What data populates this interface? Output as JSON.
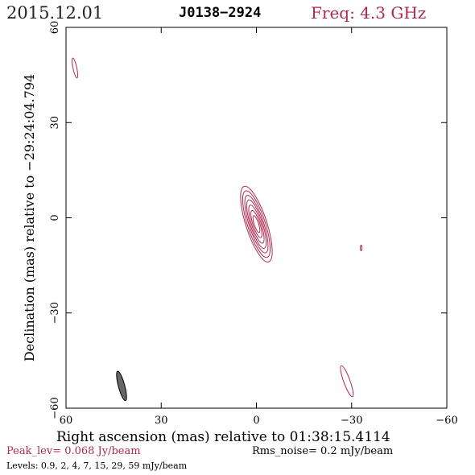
{
  "header": {
    "date": "2015.12.01",
    "source": "J0138−2924",
    "freq_label": "Freq: 4.3 GHz"
  },
  "footer": {
    "peak": "Peak_lev=  0.068 Jy/beam",
    "rms": "Rms_noise=   0.2 mJy/beam",
    "levels": "Levels: 0.9,   2,   4,   7,   15,   29,   59 mJy/beam"
  },
  "colors": {
    "accent": "#b0284e",
    "contour": "#b0284e",
    "beam_fill": "#666666"
  },
  "chart_data": {
    "type": "contour",
    "xlabel": "Right ascension (mas) relative to 01:38:15.4114",
    "ylabel": "Declination (mas) relative to −29:24:04.794",
    "xlim": [
      60,
      -60
    ],
    "ylim": [
      -60,
      60
    ],
    "x_ticks": [
      60,
      30,
      0,
      -30,
      -60
    ],
    "y_ticks": [
      60,
      30,
      0,
      -30,
      -60
    ],
    "x_tick_labels": [
      "60",
      "30",
      "0",
      "−30",
      "−60"
    ],
    "y_tick_labels": [
      "60",
      "30",
      "0",
      "−30",
      "−60"
    ],
    "contour_levels_mjy": [
      0.9,
      2,
      4,
      7,
      15,
      29,
      59
    ],
    "peak_jy_per_beam": 0.068,
    "rms_mjy_per_beam": 0.2,
    "core": {
      "center": [
        0,
        -2
      ],
      "position_angle_deg": 18,
      "contours": [
        {
          "level": 0.9,
          "major_mas": 12.5,
          "minor_mas": 3.3
        },
        {
          "level": 2,
          "major_mas": 11.0,
          "minor_mas": 2.8
        },
        {
          "level": 4,
          "major_mas": 9.5,
          "minor_mas": 2.3
        },
        {
          "level": 7,
          "major_mas": 8.0,
          "minor_mas": 1.9
        },
        {
          "level": 15,
          "major_mas": 6.3,
          "minor_mas": 1.5
        },
        {
          "level": 29,
          "major_mas": 4.5,
          "minor_mas": 1.1
        },
        {
          "level": 59,
          "major_mas": 2.8,
          "minor_mas": 0.7
        }
      ]
    },
    "features": [
      {
        "center": [
          57.2,
          47.2
        ],
        "major_mas": 3.2,
        "minor_mas": 0.6,
        "position_angle_deg": 12
      },
      {
        "center": [
          -33.0,
          -9.5
        ],
        "major_mas": 0.9,
        "minor_mas": 0.25,
        "position_angle_deg": 0
      },
      {
        "center": [
          -28.5,
          -51.5
        ],
        "major_mas": 5.2,
        "minor_mas": 1.0,
        "position_angle_deg": 20
      }
    ],
    "beam": {
      "center": [
        42.5,
        -53.0
      ],
      "major_mas": 4.8,
      "minor_mas": 1.0,
      "position_angle_deg": 15
    }
  }
}
